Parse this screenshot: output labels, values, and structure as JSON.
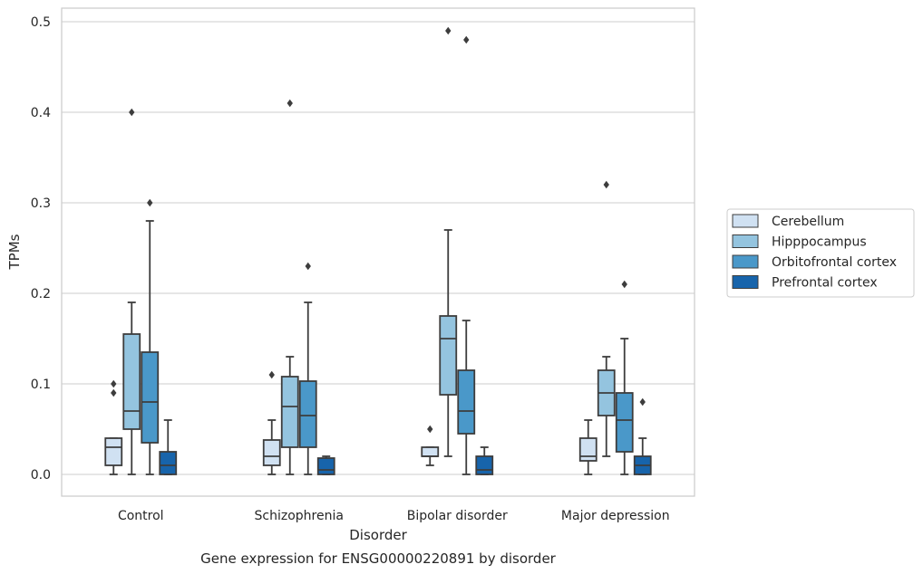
{
  "chart_data": {
    "type": "box",
    "caption": "Gene expression for ENSG00000220891 by disorder",
    "xlabel": "Disorder",
    "ylabel": "TPMs",
    "ylim": [
      -0.023,
      0.515
    ],
    "yticks": [
      0.0,
      0.1,
      0.2,
      0.3,
      0.4,
      0.5
    ],
    "ytick_labels": [
      "0.0",
      "0.1",
      "0.2",
      "0.3",
      "0.4",
      "0.5"
    ],
    "grid": "y",
    "legend_position": "right",
    "categories": [
      "Control",
      "Schizophrenia",
      "Bipolar disorder",
      "Major depression"
    ],
    "series": [
      {
        "name": "Cerebellum",
        "color": "#d0e1f2",
        "boxes": [
          {
            "whislo": 0.0,
            "q1": 0.01,
            "med": 0.03,
            "q3": 0.04,
            "whishi": 0.04,
            "fliers": [
              0.09,
              0.1
            ]
          },
          {
            "whislo": 0.0,
            "q1": 0.01,
            "med": 0.02,
            "q3": 0.038,
            "whishi": 0.06,
            "fliers": [
              0.11
            ]
          },
          {
            "whislo": 0.01,
            "q1": 0.02,
            "med": 0.02,
            "q3": 0.03,
            "whishi": 0.03,
            "fliers": [
              0.05
            ]
          },
          {
            "whislo": 0.0,
            "q1": 0.015,
            "med": 0.02,
            "q3": 0.04,
            "whishi": 0.06,
            "fliers": []
          }
        ]
      },
      {
        "name": "Hipppocampus",
        "color": "#94c4df",
        "boxes": [
          {
            "whislo": 0.0,
            "q1": 0.05,
            "med": 0.07,
            "q3": 0.155,
            "whishi": 0.19,
            "fliers": [
              0.4
            ]
          },
          {
            "whislo": 0.0,
            "q1": 0.03,
            "med": 0.075,
            "q3": 0.108,
            "whishi": 0.13,
            "fliers": [
              0.41
            ]
          },
          {
            "whislo": 0.02,
            "q1": 0.088,
            "med": 0.15,
            "q3": 0.175,
            "whishi": 0.27,
            "fliers": [
              0.49
            ]
          },
          {
            "whislo": 0.02,
            "q1": 0.065,
            "med": 0.09,
            "q3": 0.115,
            "whishi": 0.13,
            "fliers": [
              0.32
            ]
          }
        ]
      },
      {
        "name": "Orbitofrontal cortex",
        "color": "#4a98c9",
        "boxes": [
          {
            "whislo": 0.0,
            "q1": 0.035,
            "med": 0.08,
            "q3": 0.135,
            "whishi": 0.28,
            "fliers": [
              0.3
            ]
          },
          {
            "whislo": 0.0,
            "q1": 0.03,
            "med": 0.065,
            "q3": 0.103,
            "whishi": 0.19,
            "fliers": [
              0.23
            ]
          },
          {
            "whislo": 0.0,
            "q1": 0.045,
            "med": 0.07,
            "q3": 0.115,
            "whishi": 0.17,
            "fliers": [
              0.48
            ]
          },
          {
            "whislo": 0.0,
            "q1": 0.025,
            "med": 0.06,
            "q3": 0.09,
            "whishi": 0.15,
            "fliers": [
              0.21
            ]
          }
        ]
      },
      {
        "name": "Prefrontal cortex",
        "color": "#1764ab",
        "boxes": [
          {
            "whislo": 0.0,
            "q1": 0.0,
            "med": 0.01,
            "q3": 0.025,
            "whishi": 0.06,
            "fliers": []
          },
          {
            "whislo": 0.0,
            "q1": 0.0,
            "med": 0.005,
            "q3": 0.018,
            "whishi": 0.02,
            "fliers": []
          },
          {
            "whislo": 0.0,
            "q1": 0.0,
            "med": 0.005,
            "q3": 0.02,
            "whishi": 0.03,
            "fliers": []
          },
          {
            "whislo": 0.0,
            "q1": 0.0,
            "med": 0.01,
            "q3": 0.02,
            "whishi": 0.04,
            "fliers": [
              0.08
            ]
          }
        ]
      }
    ]
  }
}
